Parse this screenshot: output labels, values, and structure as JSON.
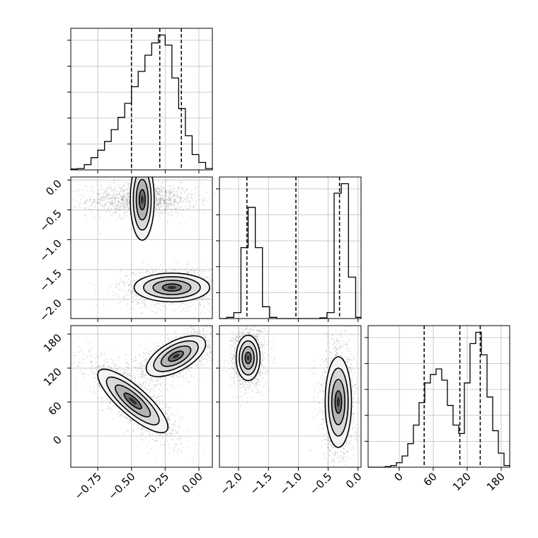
{
  "chart_data": {
    "type": "corner",
    "variables": [
      {
        "ticks": [
          -0.75,
          -0.5,
          -0.25,
          0.0
        ],
        "tick_labels": [
          "−0.75",
          "−0.50",
          "−0.25",
          "0.00"
        ],
        "range": [
          -0.95,
          0.1
        ]
      },
      {
        "ticks": [
          -2.0,
          -1.5,
          -1.0,
          -0.5,
          0.0
        ],
        "tick_labels": [
          "−2.0",
          "−1.5",
          "−1.0",
          "−0.5",
          "0.0"
        ],
        "range": [
          -2.32,
          0.05
        ]
      },
      {
        "ticks": [
          0,
          60,
          120,
          180
        ],
        "tick_labels": [
          "0",
          "60",
          "120",
          "180"
        ],
        "range": [
          -55,
          195
        ]
      }
    ],
    "histograms": [
      {
        "variable": 0,
        "bin_edges": [
          -0.95,
          -0.9,
          -0.85,
          -0.8,
          -0.75,
          -0.7,
          -0.65,
          -0.6,
          -0.55,
          -0.5,
          -0.45,
          -0.4,
          -0.35,
          -0.3,
          -0.25,
          -0.2,
          -0.15,
          -0.1,
          -0.05,
          0.0,
          0.05,
          0.1
        ],
        "counts": [
          2,
          3,
          12,
          28,
          45,
          65,
          92,
          120,
          152,
          190,
          225,
          262,
          290,
          308,
          285,
          210,
          140,
          78,
          35,
          17,
          3
        ],
        "quantiles": [
          -0.5,
          -0.29,
          -0.13
        ]
      },
      {
        "variable": 1,
        "bin_edges": [
          -2.32,
          -2.2,
          -2.08,
          -1.96,
          -1.84,
          -1.72,
          -1.6,
          -1.48,
          -1.36,
          -1.24,
          -1.12,
          -1.0,
          -0.88,
          -0.76,
          -0.64,
          -0.52,
          -0.4,
          -0.28,
          -0.16,
          -0.04,
          0.05
        ],
        "counts": [
          0,
          5,
          25,
          300,
          470,
          300,
          50,
          5,
          0,
          0,
          0,
          0,
          0,
          0,
          3,
          25,
          530,
          570,
          175,
          5
        ],
        "quantiles": [
          -1.86,
          -1.04,
          -0.31
        ]
      },
      {
        "variable": 2,
        "bin_edges": [
          -55,
          -45,
          -35,
          -25,
          -15,
          -5,
          5,
          15,
          25,
          35,
          45,
          55,
          65,
          75,
          85,
          95,
          105,
          115,
          125,
          135,
          145,
          155,
          165,
          175,
          185,
          195
        ],
        "counts": [
          0,
          0,
          0,
          1,
          3,
          8,
          20,
          42,
          75,
          115,
          150,
          165,
          175,
          155,
          110,
          75,
          60,
          150,
          220,
          240,
          200,
          125,
          65,
          25,
          3
        ],
        "quantiles": [
          44,
          107,
          143
        ]
      }
    ],
    "contours_2d": [
      {
        "x_var": 0,
        "y_var": 1,
        "modes": [
          {
            "x": -0.42,
            "y": -0.33,
            "sx": 0.15,
            "sy": 0.1,
            "rho": 0.0,
            "weight": 0.5
          },
          {
            "x": -0.2,
            "y": -1.8,
            "sx": 0.14,
            "sy": 0.12,
            "rho": 0.0,
            "weight": 0.5
          }
        ]
      },
      {
        "x_var": 0,
        "y_var": 2,
        "modes": [
          {
            "x": -0.49,
            "y": 62,
            "sx": 0.13,
            "sy": 28,
            "rho": -0.82,
            "weight": 0.5
          },
          {
            "x": -0.17,
            "y": 141,
            "sx": 0.11,
            "sy": 18,
            "rho": 0.6,
            "weight": 0.5
          }
        ]
      },
      {
        "x_var": 1,
        "y_var": 2,
        "modes": [
          {
            "x": -1.84,
            "y": 138,
            "sx": 0.1,
            "sy": 20,
            "rho": 0.0,
            "weight": 0.5
          },
          {
            "x": -0.33,
            "y": 60,
            "sx": 0.11,
            "sy": 40,
            "rho": 0.0,
            "weight": 0.5
          }
        ]
      }
    ],
    "grid": true,
    "title": "",
    "xlabel": "",
    "ylabel": ""
  }
}
